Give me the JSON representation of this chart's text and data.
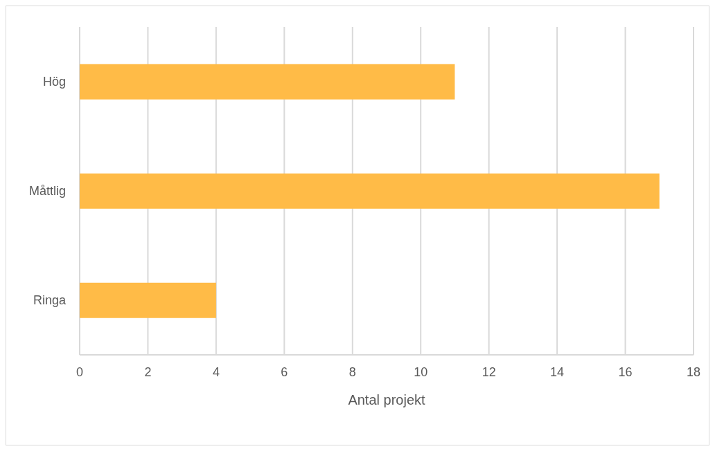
{
  "chart_data": {
    "type": "bar",
    "orientation": "horizontal",
    "categories": [
      "Hög",
      "Måttlig",
      "Ringa"
    ],
    "values": [
      11,
      17,
      4
    ],
    "color": "#ffbb47",
    "xlim": [
      0,
      18
    ],
    "xticks": [
      0,
      2,
      4,
      6,
      8,
      10,
      12,
      14,
      16,
      18
    ],
    "xlabel": "Antal projekt",
    "grid": "x"
  }
}
